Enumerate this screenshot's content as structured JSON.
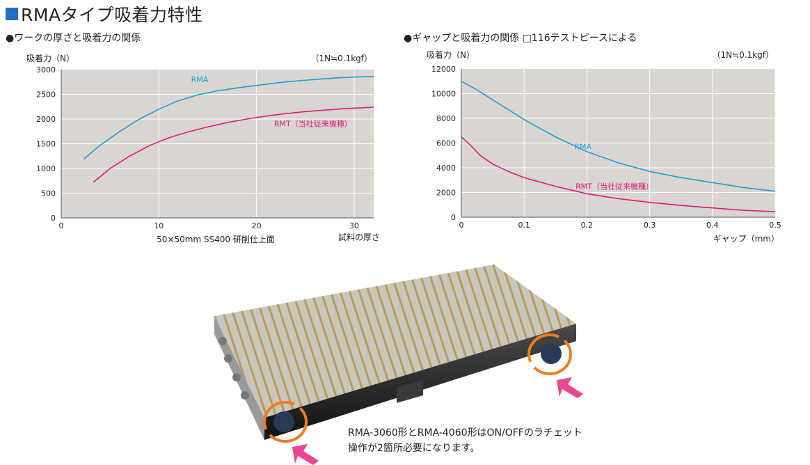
{
  "header": {
    "title": "RMAタイプ吸着力特性",
    "accent_color": "#1f6fc4"
  },
  "charts": {
    "left_heading": "●ワークの厚さと吸着力の関係",
    "right_heading": "●ギャップと吸着力の関係 □116テストピースによる"
  },
  "chart_data": [
    {
      "type": "line",
      "title": "●ワークの厚さと吸着力の関係",
      "ylabel": "吸着力（N）",
      "unit_note": "（1N≒0.1kgf）",
      "xlabel": "試料の厚さ",
      "sublabel": "50×50mm SS400 研削仕上面",
      "xlim": [
        0,
        32
      ],
      "ylim": [
        0,
        3000
      ],
      "x_ticks": [
        0,
        10,
        20,
        30
      ],
      "y_ticks": [
        0,
        500,
        1000,
        1500,
        2000,
        2500,
        3000
      ],
      "grid": true,
      "background": "#d9d5d0",
      "series": [
        {
          "name": "RMA",
          "color": "#1aa0dc",
          "x": [
            2.3,
            4,
            6,
            8,
            10,
            12,
            14,
            16,
            18,
            20,
            22,
            24,
            26,
            28,
            30,
            32
          ],
          "y": [
            1190,
            1470,
            1750,
            2000,
            2200,
            2370,
            2490,
            2570,
            2630,
            2680,
            2730,
            2770,
            2800,
            2830,
            2850,
            2860
          ]
        },
        {
          "name": "RMT（当社従来機種）",
          "color": "#e0197d",
          "x": [
            3.3,
            5,
            7,
            9,
            11,
            13,
            15,
            17,
            19,
            21,
            23,
            25,
            27,
            29,
            31,
            32
          ],
          "y": [
            720,
            1000,
            1250,
            1460,
            1620,
            1740,
            1840,
            1930,
            2000,
            2060,
            2110,
            2150,
            2180,
            2210,
            2230,
            2240
          ]
        }
      ]
    },
    {
      "type": "line",
      "title": "●ギャップと吸着力の関係 □116テストピースによる",
      "ylabel": "吸着力（N）",
      "unit_note": "（1N≒0.1kgf）",
      "xlabel": "ギャップ（mm）",
      "xlim": [
        0,
        0.5
      ],
      "ylim": [
        0,
        12000
      ],
      "x_ticks": [
        0,
        0.1,
        0.2,
        0.3,
        0.4,
        0.5
      ],
      "y_ticks": [
        0,
        2000,
        4000,
        6000,
        8000,
        10000,
        12000
      ],
      "grid": true,
      "background": "#d9d5d0",
      "series": [
        {
          "name": "RMA",
          "color": "#1aa0dc",
          "x": [
            0,
            0.025,
            0.05,
            0.075,
            0.1,
            0.15,
            0.2,
            0.25,
            0.3,
            0.35,
            0.4,
            0.45,
            0.5
          ],
          "y": [
            11000,
            10300,
            9500,
            8700,
            7900,
            6500,
            5300,
            4400,
            3700,
            3200,
            2800,
            2400,
            2100
          ]
        },
        {
          "name": "RMT（当社従来機種）",
          "color": "#e0197d",
          "x": [
            0,
            0.015,
            0.03,
            0.05,
            0.075,
            0.1,
            0.15,
            0.2,
            0.25,
            0.3,
            0.35,
            0.4,
            0.45,
            0.5
          ],
          "y": [
            6500,
            5800,
            5000,
            4300,
            3700,
            3200,
            2500,
            1900,
            1500,
            1200,
            950,
            750,
            550,
            450
          ]
        }
      ]
    }
  ],
  "product": {
    "caption_line1": "RMA-3060形とRMA-4060形はON/OFFのラチェット",
    "caption_line2": "操作が2箇所必要になります。",
    "highlight_color": "#f07d1e",
    "arrow_color": "#e8468e"
  }
}
